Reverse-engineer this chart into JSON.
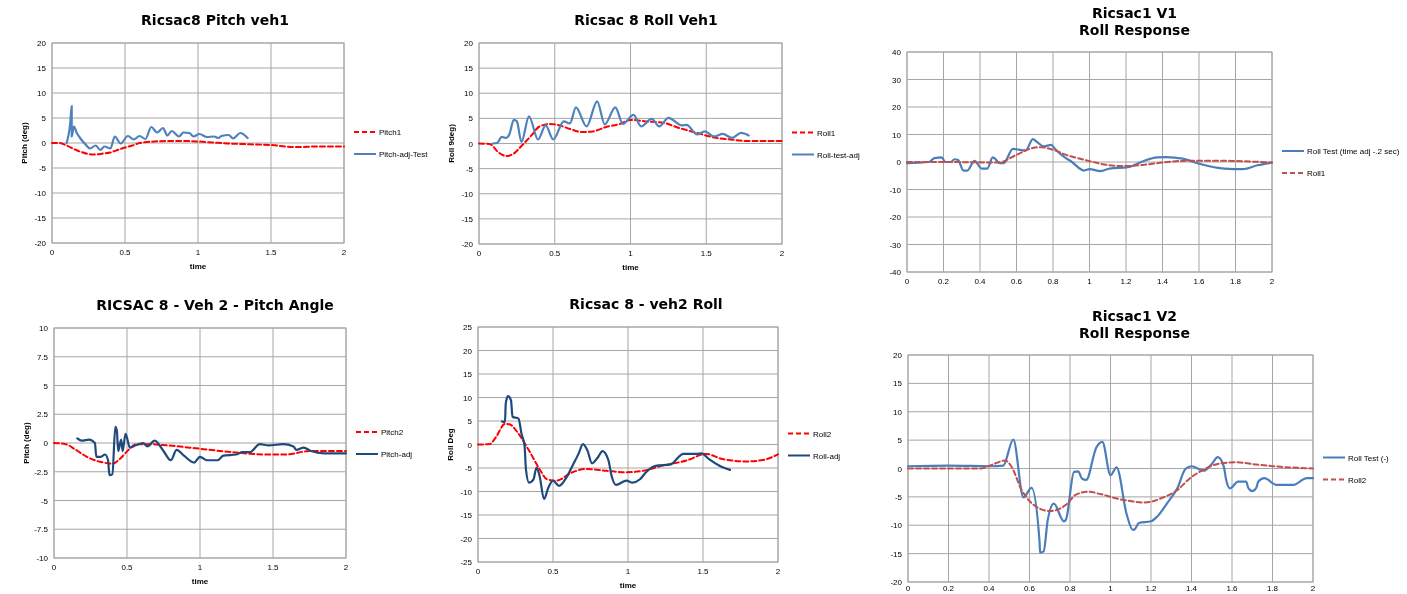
{
  "chart_data": [
    {
      "type": "line",
      "title": "Ricsac8 Pitch veh1",
      "xlabel": "time",
      "ylabel": "Pitch (deg)",
      "xlim": [
        0,
        2
      ],
      "ylim": [
        -20,
        20
      ],
      "xticks": [
        0,
        0.5,
        1,
        1.5,
        2
      ],
      "yticks": [
        -20,
        -15,
        -10,
        -5,
        0,
        5,
        10,
        15,
        20
      ],
      "grid": true,
      "legend": "right",
      "series": [
        {
          "name": "Pitch1",
          "color": "#ff0000",
          "line_style": "dashed",
          "x": [
            0,
            0.05,
            0.1,
            0.15,
            0.2,
            0.25,
            0.3,
            0.35,
            0.4,
            0.45,
            0.5,
            0.55,
            0.6,
            0.7,
            0.8,
            0.9,
            1.0,
            1.1,
            1.2,
            1.3,
            1.4,
            1.5,
            1.6,
            1.7,
            1.8,
            1.9,
            2.0
          ],
          "values": [
            0,
            0,
            -0.5,
            -1.2,
            -1.8,
            -2.2,
            -2.3,
            -2.1,
            -1.9,
            -1.4,
            -0.9,
            -0.5,
            0,
            0.3,
            0.4,
            0.4,
            0.3,
            0.1,
            -0.1,
            -0.2,
            -0.3,
            -0.4,
            -0.7,
            -0.8,
            -0.7,
            -0.7,
            -0.7
          ]
        },
        {
          "name": "Pitch-adj-Test",
          "color": "#4f81bd",
          "line_style": "solid",
          "x": [
            0.1,
            0.125,
            0.135,
            0.135,
            0.15,
            0.17,
            0.2,
            0.23,
            0.26,
            0.3,
            0.33,
            0.36,
            0.4,
            0.43,
            0.47,
            0.52,
            0.56,
            0.6,
            0.64,
            0.68,
            0.72,
            0.76,
            0.79,
            0.82,
            0.87,
            0.9,
            0.94,
            0.97,
            1.01,
            1.06,
            1.11,
            1.14,
            1.16,
            1.21,
            1.24,
            1.29,
            1.34
          ],
          "values": [
            0,
            4,
            7.4,
            1.3,
            3.3,
            2,
            0.7,
            -0.3,
            -1.1,
            -0.5,
            -1.4,
            -0.7,
            -1.1,
            1.3,
            -0.1,
            1.4,
            0.7,
            1.4,
            0.8,
            3.2,
            2.1,
            3,
            1.5,
            2.4,
            1.3,
            2.1,
            2,
            1.3,
            1.8,
            1.2,
            1.3,
            1,
            1.4,
            1.6,
            0.9,
            2,
            1
          ]
        }
      ]
    },
    {
      "type": "line",
      "title": "Ricsac 8 Roll Veh1",
      "xlabel": "time",
      "ylabel": "Roll 9deg)",
      "xlim": [
        0,
        2
      ],
      "ylim": [
        -20,
        20
      ],
      "xticks": [
        0,
        0.5,
        1,
        1.5,
        2
      ],
      "yticks": [
        -20,
        -15,
        -10,
        -5,
        0,
        5,
        10,
        15,
        20
      ],
      "grid": true,
      "legend": "right",
      "series": [
        {
          "name": "Roll1",
          "color": "#ff0000",
          "line_style": "dashed",
          "x": [
            0,
            0.07,
            0.13,
            0.18,
            0.23,
            0.28,
            0.34,
            0.4,
            0.47,
            0.52,
            0.6,
            0.68,
            0.75,
            0.84,
            0.93,
            1.0,
            1.1,
            1.22,
            1.32,
            1.44,
            1.55,
            1.66,
            1.77,
            2
          ],
          "values": [
            0,
            -0.1,
            -1.8,
            -2.5,
            -2,
            -0.5,
            1.4,
            3.4,
            3.9,
            3.7,
            2.9,
            2.3,
            2.4,
            3.3,
            3.9,
            4.7,
            4.4,
            4.1,
            3.1,
            2.1,
            1.2,
            0.8,
            0.5,
            0.5
          ]
        },
        {
          "name": "Roll-test-adj",
          "color": "#4f81bd",
          "line_style": "solid",
          "x": [
            0.09,
            0.12,
            0.15,
            0.18,
            0.2,
            0.23,
            0.25,
            0.28,
            0.33,
            0.39,
            0.44,
            0.49,
            0.56,
            0.6,
            0.64,
            0.71,
            0.78,
            0.83,
            0.9,
            0.95,
            1.02,
            1.07,
            1.14,
            1.19,
            1.25,
            1.34,
            1.37,
            1.44,
            1.49,
            1.55,
            1.61,
            1.67,
            1.73,
            1.78
          ],
          "values": [
            0,
            0.1,
            1.3,
            1.1,
            1.8,
            4.7,
            4.4,
            0.3,
            5.4,
            0.8,
            3.6,
            0.8,
            4.4,
            4,
            7.2,
            3.4,
            8.4,
            3.8,
            7.2,
            3.9,
            5.7,
            3.4,
            4.9,
            3.4,
            5.1,
            3.6,
            3.7,
            1.8,
            2.4,
            1.4,
            1.9,
            1.1,
            2.1,
            1.6
          ]
        }
      ]
    },
    {
      "type": "line",
      "title": "Ricsac1 V1",
      "subtitle": "Roll Response",
      "xlim": [
        0,
        2
      ],
      "ylim": [
        -40,
        40
      ],
      "xticks": [
        0,
        0.2,
        0.4,
        0.6,
        0.8,
        1,
        1.2,
        1.4,
        1.6,
        1.8,
        2
      ],
      "yticks": [
        -40,
        -30,
        -20,
        -10,
        0,
        10,
        20,
        30,
        40
      ],
      "grid": true,
      "legend": "right",
      "series": [
        {
          "name": "Roll Test (time adj -.2 sec)",
          "color": "#4a7ebb",
          "line_style": "solid",
          "x": [
            0,
            0.12,
            0.15,
            0.19,
            0.21,
            0.24,
            0.26,
            0.28,
            0.31,
            0.33,
            0.37,
            0.41,
            0.44,
            0.47,
            0.51,
            0.53,
            0.58,
            0.61,
            0.65,
            0.69,
            0.71,
            0.75,
            0.79,
            0.81,
            0.87,
            0.9,
            0.97,
            1.0,
            1.06,
            1.11,
            1.21,
            1.29,
            1.37,
            1.42,
            1.51,
            1.6,
            1.74,
            1.84,
            1.92,
            2
          ],
          "values": [
            -0.4,
            0,
            1.4,
            1.7,
            0,
            0,
            1,
            0.7,
            -3.1,
            -3.1,
            0.4,
            -2.4,
            -2.4,
            1.7,
            -0.4,
            -0.4,
            4.8,
            4.5,
            4.2,
            8.3,
            7.4,
            5.7,
            6.2,
            4.8,
            1.4,
            0.2,
            -3.1,
            -2.6,
            -3.3,
            -2.4,
            -1.9,
            0.2,
            1.7,
            1.8,
            1.2,
            -0.6,
            -2.4,
            -2.6,
            -1.2,
            -0.2
          ]
        },
        {
          "name": "Roll1",
          "color": "#c0504d",
          "line_style": "dashed",
          "x": [
            0,
            0.22,
            0.5,
            0.6,
            0.69,
            0.73,
            0.81,
            0.88,
            0.96,
            1.02,
            1.09,
            1.19,
            1.3,
            1.4,
            1.51,
            1.65,
            1.78,
            2
          ],
          "values": [
            0,
            0,
            -0.2,
            2.6,
            5.1,
            5.4,
            4.2,
            2.4,
            1,
            0,
            -1,
            -1.5,
            -1,
            -0.2,
            0.4,
            0.5,
            0.4,
            -0.2
          ]
        }
      ]
    },
    {
      "type": "line",
      "title": "RICSAC 8 - Veh 2 - Pitch Angle",
      "xlabel": "time",
      "ylabel": "Pitch (deg)",
      "xlim": [
        0,
        2
      ],
      "ylim": [
        -10,
        10
      ],
      "xticks": [
        0,
        0.5,
        1,
        1.5,
        2
      ],
      "yticks": [
        -10,
        -7.5,
        -5,
        -2.5,
        0,
        2.5,
        5,
        7.5,
        10
      ],
      "grid": true,
      "legend": "right",
      "series": [
        {
          "name": "Pitch2",
          "color": "#ff0000",
          "line_style": "dashed",
          "x": [
            0,
            0.08,
            0.15,
            0.24,
            0.34,
            0.4,
            0.45,
            0.51,
            0.56,
            0.65,
            0.77,
            1.0,
            1.22,
            1.45,
            1.59,
            1.75,
            2
          ],
          "values": [
            0,
            -0.1,
            -0.6,
            -1.3,
            -1.7,
            -1.8,
            -1.4,
            -0.6,
            -0.1,
            -0.1,
            -0.2,
            -0.5,
            -0.8,
            -1,
            -1,
            -0.7,
            -0.7
          ]
        },
        {
          "name": "Pitch-adj",
          "color": "#1f497d",
          "line_style": "solid",
          "x": [
            0.16,
            0.19,
            0.24,
            0.28,
            0.29,
            0.32,
            0.35,
            0.37,
            0.38,
            0.4,
            0.42,
            0.43,
            0.44,
            0.46,
            0.47,
            0.49,
            0.52,
            0.56,
            0.61,
            0.64,
            0.69,
            0.75,
            0.8,
            0.84,
            0.89,
            0.96,
            1.0,
            1.05,
            1.12,
            1.16,
            1.25,
            1.29,
            1.34,
            1.41,
            1.47,
            1.57,
            1.64,
            1.66,
            1.71,
            1.76,
            1.85,
            2
          ],
          "values": [
            0.4,
            0.2,
            0.3,
            0,
            -1.2,
            -1.2,
            -1,
            -1.5,
            -2.8,
            -2.7,
            1.4,
            1.1,
            -0.7,
            0.3,
            -0.7,
            0.8,
            -0.4,
            -0.2,
            0,
            -0.3,
            0.2,
            -0.7,
            -1.5,
            -0.6,
            -1.1,
            -1.7,
            -1.2,
            -1.5,
            -1.5,
            -1.1,
            -1,
            -0.8,
            -0.8,
            -0.1,
            -0.2,
            -0.1,
            -0.3,
            -0.6,
            -0.4,
            -0.7,
            -0.9,
            -0.9
          ]
        }
      ]
    },
    {
      "type": "line",
      "title": "Ricsac 8 - veh2 Roll",
      "xlabel": "time",
      "ylabel": "Roll Deg",
      "xlim": [
        0,
        2
      ],
      "ylim": [
        -25,
        25
      ],
      "xticks": [
        0,
        0.5,
        1,
        1.5,
        2
      ],
      "yticks": [
        -25,
        -20,
        -15,
        -10,
        -5,
        0,
        5,
        10,
        15,
        20,
        25
      ],
      "grid": true,
      "legend": "right",
      "series": [
        {
          "name": "Roll2",
          "color": "#ff0000",
          "line_style": "dashed",
          "x": [
            0,
            0.08,
            0.12,
            0.18,
            0.21,
            0.27,
            0.34,
            0.41,
            0.46,
            0.52,
            0.63,
            0.72,
            0.86,
            0.99,
            1.1,
            1.23,
            1.39,
            1.52,
            1.63,
            1.79,
            1.9,
            2
          ],
          "values": [
            0,
            0.1,
            1.6,
            4.4,
            4.3,
            2.3,
            -1.3,
            -5.2,
            -7.4,
            -7.7,
            -5.9,
            -5.2,
            -5.6,
            -5.9,
            -5.6,
            -4.5,
            -3.4,
            -2,
            -3.1,
            -3.6,
            -3.3,
            -2.1
          ]
        },
        {
          "name": "Roll-adj",
          "color": "#1f497d",
          "line_style": "solid",
          "x": [
            0.16,
            0.18,
            0.185,
            0.2,
            0.22,
            0.23,
            0.27,
            0.29,
            0.31,
            0.32,
            0.34,
            0.37,
            0.39,
            0.41,
            0.44,
            0.47,
            0.5,
            0.54,
            0.59,
            0.63,
            0.67,
            0.7,
            0.73,
            0.76,
            0.8,
            0.83,
            0.87,
            0.89,
            0.92,
            0.99,
            1.03,
            1.08,
            1.12,
            1.19,
            1.28,
            1.37,
            1.46,
            1.49,
            1.54,
            1.61,
            1.68
          ],
          "values": [
            4.9,
            4.8,
            8.7,
            10.3,
            9.4,
            5.9,
            5.5,
            2.3,
            -0.2,
            -5.4,
            -8.1,
            -7.4,
            -4.9,
            -6.6,
            -11.6,
            -9.1,
            -7.7,
            -8.8,
            -7,
            -4.5,
            -2,
            0.1,
            -1.3,
            -4,
            -2.7,
            -1.4,
            -3.4,
            -6.6,
            -8.6,
            -7.7,
            -8.1,
            -7.4,
            -5.9,
            -4.5,
            -4.3,
            -2,
            -2,
            -1.9,
            -3.1,
            -4.5,
            -5.4
          ]
        }
      ]
    },
    {
      "type": "line",
      "title": "Ricsac1 V2",
      "subtitle": "Roll Response",
      "xlim": [
        0,
        2
      ],
      "ylim": [
        -20,
        20
      ],
      "xticks": [
        0,
        0.2,
        0.4,
        0.6,
        0.8,
        1,
        1.2,
        1.4,
        1.6,
        1.8,
        2
      ],
      "yticks": [
        -20,
        -15,
        -10,
        -5,
        0,
        5,
        10,
        15,
        20
      ],
      "grid": true,
      "legend": "right",
      "series": [
        {
          "name": "Roll Test (-)",
          "color": "#4a7ebb",
          "line_style": "solid",
          "x": [
            0,
            0.2,
            0.41,
            0.47,
            0.52,
            0.57,
            0.61,
            0.65,
            0.652,
            0.67,
            0.69,
            0.72,
            0.77,
            0.78,
            0.82,
            0.84,
            0.86,
            0.88,
            0.93,
            0.96,
            1.0,
            1.03,
            1.08,
            1.11,
            1.12,
            1.14,
            1.2,
            1.23,
            1.28,
            1.33,
            1.37,
            1.4,
            1.46,
            1.5,
            1.53,
            1.56,
            1.57,
            1.59,
            1.63,
            1.67,
            1.68,
            1.7,
            1.72,
            1.73,
            1.76,
            1.82,
            1.9,
            1.97,
            2
          ],
          "values": [
            0.4,
            0.5,
            0.4,
            0.5,
            5.1,
            -5.1,
            -3.4,
            -13.1,
            -14.8,
            -14.6,
            -9.1,
            -6.2,
            -9.3,
            -9,
            -0.6,
            -0.5,
            -1.8,
            -2,
            3.7,
            4.7,
            -1.2,
            0.2,
            -8.1,
            -10.8,
            -10.7,
            -9.6,
            -9.3,
            -8.5,
            -6.1,
            -3.5,
            -0.1,
            0.4,
            -0.4,
            0.8,
            2,
            0.3,
            -1.8,
            -3.5,
            -2.3,
            -2.3,
            -3.4,
            -4,
            -3.4,
            -2.3,
            -1.7,
            -2.9,
            -2.9,
            -1.7,
            -1.7
          ]
        },
        {
          "name": "Roll2",
          "color": "#c0504d",
          "line_style": "dashed",
          "x": [
            0,
            0.36,
            0.41,
            0.48,
            0.51,
            0.56,
            0.61,
            0.7,
            0.78,
            0.83,
            0.89,
            0.95,
            1.02,
            1.11,
            1.17,
            1.26,
            1.33,
            1.39,
            1.46,
            1.53,
            1.62,
            1.72,
            1.84,
            2
          ],
          "values": [
            0,
            0,
            0.6,
            1.4,
            0.4,
            -3.7,
            -6.1,
            -7.5,
            -6.4,
            -4.6,
            -4.1,
            -4.5,
            -5.2,
            -5.8,
            -6,
            -5.1,
            -3.8,
            -1.8,
            -0.2,
            0.8,
            1.1,
            0.7,
            0.3,
            0
          ]
        }
      ]
    }
  ]
}
